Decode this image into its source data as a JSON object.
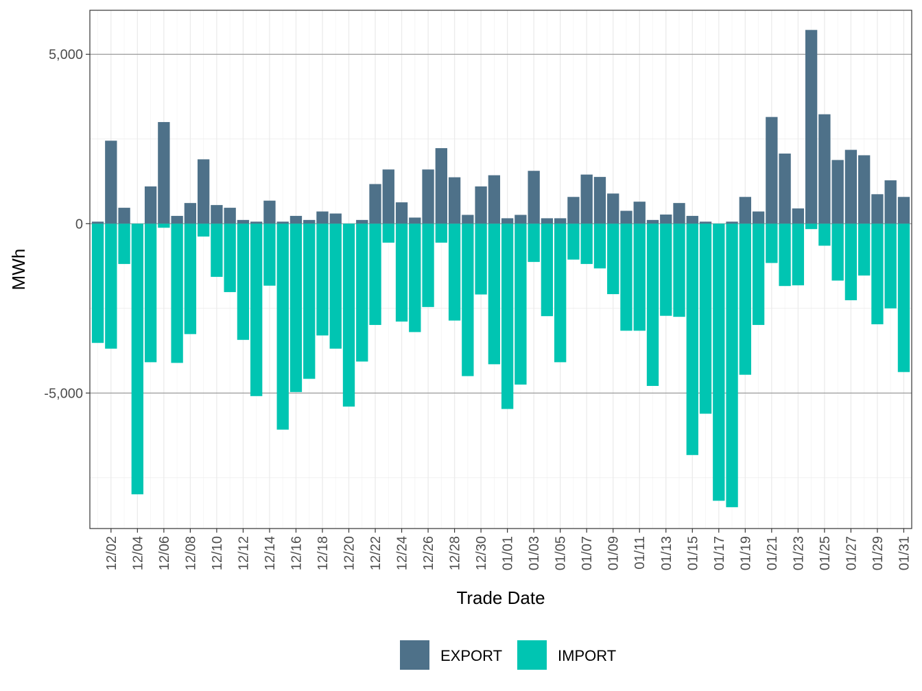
{
  "chart_data": {
    "type": "bar",
    "stacked": true,
    "xlabel": "Trade Date",
    "ylabel": "MWh",
    "ylim": [
      -9000,
      6300
    ],
    "yticks": [
      5000,
      0,
      -5000
    ],
    "ytick_labels": [
      "5,000",
      "0",
      "-5,000"
    ],
    "grid": true,
    "legend_position": "bottom",
    "categories": [
      "12/01",
      "12/02",
      "12/03",
      "12/04",
      "12/05",
      "12/06",
      "12/07",
      "12/08",
      "12/09",
      "12/10",
      "12/11",
      "12/12",
      "12/13",
      "12/14",
      "12/15",
      "12/16",
      "12/17",
      "12/18",
      "12/19",
      "12/20",
      "12/21",
      "12/22",
      "12/23",
      "12/24",
      "12/25",
      "12/26",
      "12/27",
      "12/28",
      "12/29",
      "12/30",
      "12/31",
      "01/01",
      "01/02",
      "01/03",
      "01/04",
      "01/05",
      "01/06",
      "01/07",
      "01/08",
      "01/09",
      "01/10",
      "01/11",
      "01/12",
      "01/13",
      "01/14",
      "01/15",
      "01/16",
      "01/17",
      "01/18",
      "01/19",
      "01/20",
      "01/21",
      "01/22",
      "01/23",
      "01/24",
      "01/25",
      "01/26",
      "01/27",
      "01/28",
      "01/29",
      "01/30",
      "01/31"
    ],
    "tick_labels": [
      "12/02",
      "12/04",
      "12/06",
      "12/08",
      "12/10",
      "12/12",
      "12/14",
      "12/16",
      "12/18",
      "12/20",
      "12/22",
      "12/24",
      "12/26",
      "12/28",
      "12/30",
      "01/01",
      "01/03",
      "01/05",
      "01/07",
      "01/09",
      "01/11",
      "01/13",
      "01/15",
      "01/17",
      "01/19",
      "01/21",
      "01/23",
      "01/25",
      "01/27",
      "01/29",
      "01/31"
    ],
    "series": [
      {
        "name": "EXPORT",
        "color": "#4e7189",
        "values": [
          60,
          2450,
          470,
          0,
          1100,
          3000,
          230,
          610,
          1900,
          550,
          470,
          110,
          60,
          680,
          60,
          230,
          110,
          360,
          300,
          0,
          110,
          1170,
          1600,
          630,
          180,
          1600,
          2230,
          1370,
          260,
          1100,
          1430,
          160,
          260,
          1560,
          160,
          160,
          790,
          1450,
          1380,
          890,
          380,
          650,
          110,
          270,
          610,
          230,
          60,
          0,
          60,
          790,
          360,
          3150,
          2070,
          450,
          5720,
          3230,
          1880,
          2180,
          2020,
          870,
          1280,
          790
        ]
      },
      {
        "name": "IMPORT",
        "color": "#00c5b2",
        "values": [
          -3520,
          -3690,
          -1190,
          -7990,
          -4090,
          -120,
          -4110,
          -3260,
          -380,
          -1570,
          -2020,
          -3430,
          -5090,
          -1830,
          -6080,
          -4970,
          -4580,
          -3300,
          -3690,
          -5400,
          -4070,
          -2990,
          -560,
          -2890,
          -3200,
          -2460,
          -560,
          -2860,
          -4500,
          -2090,
          -4150,
          -5470,
          -4750,
          -1130,
          -2730,
          -4090,
          -1060,
          -1190,
          -1320,
          -2080,
          -3160,
          -3160,
          -4790,
          -2720,
          -2750,
          -6830,
          -5610,
          -8180,
          -8370,
          -4460,
          -2990,
          -1160,
          -1840,
          -1820,
          -160,
          -650,
          -1680,
          -2260,
          -1530,
          -2970,
          -2500,
          -4380
        ]
      }
    ]
  }
}
